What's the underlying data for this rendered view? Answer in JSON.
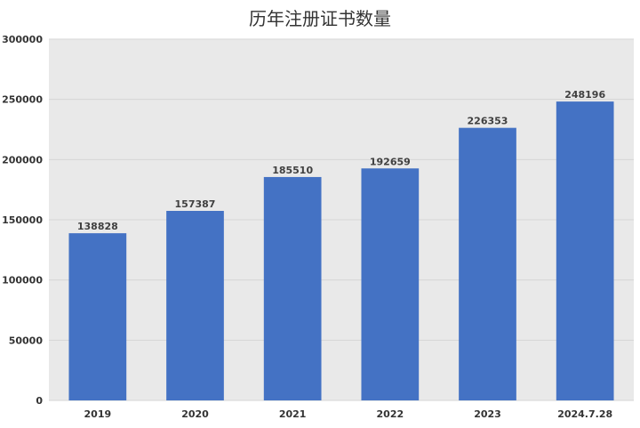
{
  "chart_data": {
    "type": "bar",
    "title": "历年注册证书数量",
    "xlabel": "",
    "ylabel": "",
    "categories": [
      "2019",
      "2020",
      "2021",
      "2022",
      "2023",
      "2024.7.28"
    ],
    "values": [
      138828,
      157387,
      185510,
      192659,
      226353,
      248196
    ],
    "ylim": [
      0,
      300000
    ],
    "yticks": [
      0,
      50000,
      100000,
      150000,
      200000,
      250000,
      300000
    ],
    "grid": true,
    "legend": "none",
    "colors": {
      "bar": "#4472c4",
      "plot_background": "#e9e9e9",
      "gridline": "#d6d6d6"
    }
  }
}
